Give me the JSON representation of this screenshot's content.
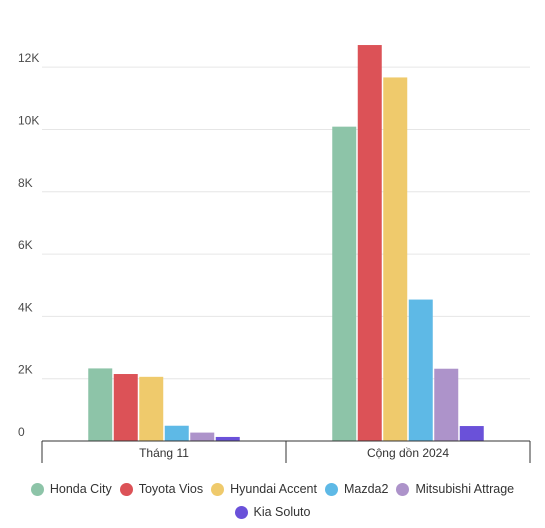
{
  "chart_data": {
    "type": "bar",
    "categories": [
      "Tháng 11",
      "Cộng dồn 2024"
    ],
    "series": [
      {
        "name": "Honda City",
        "color": "#8dc4a8",
        "values": [
          2330,
          10090
        ]
      },
      {
        "name": "Toyota Vios",
        "color": "#dc5257",
        "values": [
          2150,
          12710
        ]
      },
      {
        "name": "Hyundai Accent",
        "color": "#efca6c",
        "values": [
          2060,
          11670
        ]
      },
      {
        "name": "Mazda2",
        "color": "#5eb9e6",
        "values": [
          490,
          4540
        ]
      },
      {
        "name": "Mitsubishi Attrage",
        "color": "#ad93ca",
        "values": [
          270,
          2320
        ]
      },
      {
        "name": "Kia Soluto",
        "color": "#6a51d9",
        "values": [
          130,
          480
        ]
      }
    ],
    "yticks": [
      {
        "value": 0,
        "label": "0"
      },
      {
        "value": 2000,
        "label": "2K"
      },
      {
        "value": 4000,
        "label": "4K"
      },
      {
        "value": 6000,
        "label": "6K"
      },
      {
        "value": 8000,
        "label": "8K"
      },
      {
        "value": 10000,
        "label": "10K"
      },
      {
        "value": 12000,
        "label": "12K"
      }
    ],
    "ylim": [
      0,
      13000
    ],
    "grid": true,
    "legend_position": "bottom",
    "title": "",
    "xlabel": "",
    "ylabel": ""
  }
}
